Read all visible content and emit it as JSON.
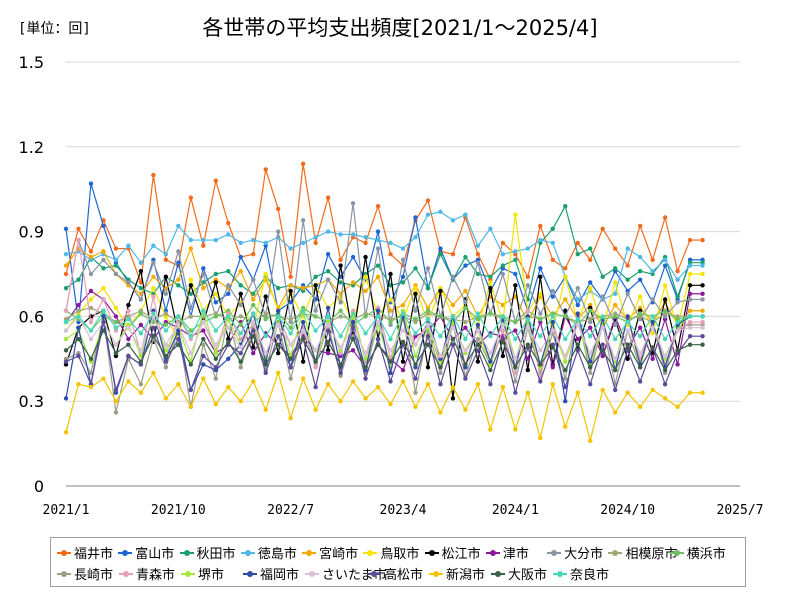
{
  "unit_label": "[単位：回]",
  "chart_data": {
    "type": "line",
    "title": "各世帯の平均支出頻度[2021/1～2025/4]",
    "xlabel": "",
    "ylabel": "",
    "ylim": [
      0,
      1.5
    ],
    "y_ticks": [
      "0",
      "0.3",
      "0.6",
      "0.9",
      "1.2",
      "1.5"
    ],
    "x_ticks": [
      "2021/1",
      "2021/10",
      "2022/7",
      "2023/4",
      "2024/1",
      "2024/10",
      "2025/7"
    ],
    "x_start": "2021/1",
    "months": 52,
    "grid": "horizontal",
    "legend_position": "bottom",
    "series": [
      {
        "name": "福井市",
        "color": "#f26b1d",
        "values": [
          0.75,
          0.91,
          0.83,
          0.94,
          0.84,
          0.84,
          0.72,
          1.1,
          0.8,
          0.78,
          1.02,
          0.85,
          1.08,
          0.93,
          0.81,
          0.82,
          1.12,
          0.98,
          0.74,
          1.14,
          0.86,
          1.02,
          0.8,
          0.88,
          0.86,
          0.99,
          0.82,
          0.78,
          0.94,
          1.01,
          0.83,
          0.82,
          0.95,
          0.82,
          0.73,
          0.86,
          0.82,
          0.74,
          0.92,
          0.8,
          0.77,
          0.86,
          0.8,
          0.91,
          0.84,
          0.78,
          0.92,
          0.8,
          0.95,
          0.76,
          0.87,
          0.87
        ]
      },
      {
        "name": "富山市",
        "color": "#1f66d4",
        "values": [
          0.91,
          0.58,
          1.07,
          0.92,
          0.79,
          0.72,
          0.66,
          0.8,
          0.62,
          0.79,
          0.6,
          0.77,
          0.65,
          0.68,
          0.81,
          0.73,
          0.85,
          0.62,
          0.65,
          0.71,
          0.66,
          0.82,
          0.74,
          0.81,
          0.73,
          0.9,
          0.65,
          0.74,
          0.95,
          0.7,
          0.84,
          0.73,
          0.78,
          0.8,
          0.69,
          0.77,
          0.75,
          0.62,
          0.77,
          0.67,
          0.74,
          0.64,
          0.72,
          0.66,
          0.76,
          0.69,
          0.73,
          0.65,
          0.78,
          0.66,
          0.8,
          0.8
        ]
      },
      {
        "name": "秋田市",
        "color": "#1aa06e",
        "values": [
          0.7,
          0.73,
          0.81,
          0.77,
          0.78,
          0.73,
          0.7,
          0.68,
          0.74,
          0.71,
          0.68,
          0.72,
          0.75,
          0.76,
          0.71,
          0.68,
          0.74,
          0.7,
          0.71,
          0.69,
          0.74,
          0.76,
          0.72,
          0.71,
          0.75,
          0.78,
          0.71,
          0.72,
          0.77,
          0.7,
          0.82,
          0.73,
          0.81,
          0.75,
          0.74,
          0.78,
          0.8,
          0.66,
          0.86,
          0.91,
          0.99,
          0.82,
          0.84,
          0.74,
          0.77,
          0.73,
          0.76,
          0.75,
          0.81,
          0.67,
          0.79,
          0.79
        ]
      },
      {
        "name": "徳島市",
        "color": "#4fb8e8",
        "values": [
          0.82,
          0.83,
          0.8,
          0.82,
          0.8,
          0.85,
          0.79,
          0.85,
          0.82,
          0.92,
          0.87,
          0.87,
          0.87,
          0.89,
          0.86,
          0.87,
          0.86,
          0.88,
          0.84,
          0.86,
          0.88,
          0.9,
          0.89,
          0.89,
          0.88,
          0.87,
          0.86,
          0.84,
          0.88,
          0.96,
          0.97,
          0.94,
          0.96,
          0.85,
          0.91,
          0.82,
          0.83,
          0.84,
          0.87,
          0.86,
          0.74,
          0.66,
          0.69,
          0.66,
          0.68,
          0.84,
          0.81,
          0.76,
          0.8,
          0.73,
          0.78,
          0.78
        ]
      },
      {
        "name": "宮崎市",
        "color": "#f5a800",
        "values": [
          0.78,
          0.84,
          0.81,
          0.83,
          0.75,
          0.71,
          0.68,
          0.74,
          0.7,
          0.73,
          0.84,
          0.7,
          0.73,
          0.7,
          0.76,
          0.66,
          0.73,
          0.63,
          0.71,
          0.7,
          0.71,
          0.73,
          0.68,
          0.72,
          0.69,
          0.74,
          0.62,
          0.64,
          0.71,
          0.63,
          0.7,
          0.64,
          0.69,
          0.6,
          0.67,
          0.64,
          0.67,
          0.58,
          0.67,
          0.6,
          0.66,
          0.59,
          0.64,
          0.56,
          0.64,
          0.59,
          0.63,
          0.58,
          0.65,
          0.57,
          0.62,
          0.62
        ]
      },
      {
        "name": "鳥取市",
        "color": "#f5e400",
        "values": [
          0.55,
          0.61,
          0.66,
          0.7,
          0.63,
          0.56,
          0.62,
          0.7,
          0.6,
          0.52,
          0.73,
          0.62,
          0.68,
          0.6,
          0.65,
          0.56,
          0.75,
          0.62,
          0.68,
          0.6,
          0.71,
          0.63,
          0.67,
          0.58,
          0.74,
          0.6,
          0.66,
          0.59,
          0.7,
          0.58,
          0.7,
          0.6,
          0.64,
          0.56,
          0.72,
          0.58,
          0.96,
          0.62,
          0.68,
          0.55,
          0.74,
          0.58,
          0.7,
          0.56,
          0.72,
          0.57,
          0.67,
          0.54,
          0.71,
          0.56,
          0.75,
          0.75
        ]
      },
      {
        "name": "松江市",
        "color": "#000000",
        "values": [
          0.43,
          0.56,
          0.6,
          0.62,
          0.46,
          0.64,
          0.76,
          0.51,
          0.74,
          0.54,
          0.71,
          0.58,
          0.72,
          0.52,
          0.68,
          0.49,
          0.67,
          0.47,
          0.69,
          0.44,
          0.71,
          0.48,
          0.78,
          0.53,
          0.81,
          0.52,
          0.75,
          0.44,
          0.68,
          0.42,
          0.69,
          0.31,
          0.66,
          0.44,
          0.7,
          0.46,
          0.71,
          0.41,
          0.74,
          0.43,
          0.62,
          0.49,
          0.63,
          0.46,
          0.59,
          0.45,
          0.62,
          0.47,
          0.66,
          0.48,
          0.71,
          0.71
        ]
      },
      {
        "name": "津市",
        "color": "#8b1a9b",
        "values": [
          0.58,
          0.64,
          0.69,
          0.66,
          0.6,
          0.52,
          0.57,
          0.52,
          0.58,
          0.56,
          0.53,
          0.55,
          0.47,
          0.5,
          0.58,
          0.47,
          0.54,
          0.5,
          0.46,
          0.53,
          0.48,
          0.47,
          0.46,
          0.48,
          0.42,
          0.5,
          0.45,
          0.41,
          0.53,
          0.55,
          0.6,
          0.52,
          0.56,
          0.5,
          0.54,
          0.53,
          0.55,
          0.45,
          0.58,
          0.42,
          0.6,
          0.52,
          0.56,
          0.46,
          0.6,
          0.49,
          0.56,
          0.45,
          0.59,
          0.43,
          0.68,
          0.68
        ]
      },
      {
        "name": "大分市",
        "color": "#8a95a5",
        "values": [
          0.62,
          0.87,
          0.75,
          0.8,
          0.75,
          0.72,
          0.66,
          0.79,
          0.68,
          0.83,
          0.63,
          0.75,
          0.6,
          0.71,
          0.64,
          0.73,
          0.6,
          0.9,
          0.58,
          0.94,
          0.62,
          0.73,
          0.65,
          1.0,
          0.6,
          0.84,
          0.57,
          0.8,
          0.62,
          0.77,
          0.6,
          0.74,
          0.65,
          0.79,
          0.61,
          0.75,
          0.58,
          0.71,
          0.61,
          0.69,
          0.6,
          0.7,
          0.58,
          0.67,
          0.57,
          0.68,
          0.59,
          0.66,
          0.6,
          0.65,
          0.66,
          0.66
        ]
      },
      {
        "name": "相模原市",
        "color": "#a0a878",
        "values": [
          0.59,
          0.62,
          0.63,
          0.61,
          0.58,
          0.6,
          0.62,
          0.59,
          0.61,
          0.58,
          0.6,
          0.6,
          0.61,
          0.59,
          0.6,
          0.58,
          0.61,
          0.6,
          0.59,
          0.61,
          0.6,
          0.58,
          0.6,
          0.59,
          0.61,
          0.6,
          0.59,
          0.6,
          0.58,
          0.61,
          0.6,
          0.59,
          0.58,
          0.6,
          0.61,
          0.59,
          0.58,
          0.6,
          0.59,
          0.61,
          0.6,
          0.58,
          0.59,
          0.6,
          0.61,
          0.59,
          0.6,
          0.58,
          0.61,
          0.6,
          0.6,
          0.6
        ]
      },
      {
        "name": "横浜市",
        "color": "#6cc060",
        "values": [
          0.62,
          0.59,
          0.55,
          0.6,
          0.58,
          0.56,
          0.61,
          0.58,
          0.57,
          0.6,
          0.55,
          0.58,
          0.6,
          0.62,
          0.57,
          0.64,
          0.59,
          0.61,
          0.56,
          0.63,
          0.6,
          0.58,
          0.62,
          0.57,
          0.6,
          0.63,
          0.58,
          0.61,
          0.59,
          0.62,
          0.6,
          0.58,
          0.63,
          0.59,
          0.61,
          0.6,
          0.58,
          0.62,
          0.59,
          0.61,
          0.6,
          0.57,
          0.62,
          0.59,
          0.6,
          0.58,
          0.61,
          0.6,
          0.62,
          0.59,
          0.6,
          0.6
        ]
      },
      {
        "name": "長崎市",
        "color": "#9d9d8a",
        "values": [
          0.45,
          0.47,
          0.4,
          0.6,
          0.26,
          0.45,
          0.36,
          0.52,
          0.42,
          0.55,
          0.28,
          0.5,
          0.38,
          0.6,
          0.42,
          0.56,
          0.41,
          0.58,
          0.38,
          0.55,
          0.43,
          0.57,
          0.39,
          0.53,
          0.4,
          0.58,
          0.42,
          0.6,
          0.33,
          0.55,
          0.4,
          0.57,
          0.39,
          0.52,
          0.43,
          0.55,
          0.37,
          0.56,
          0.4,
          0.54,
          0.38,
          0.6,
          0.4,
          0.57,
          0.36,
          0.55,
          0.42,
          0.58,
          0.4,
          0.56,
          0.57,
          0.57
        ]
      },
      {
        "name": "青森市",
        "color": "#e8a0b8",
        "values": [
          0.62,
          0.87,
          0.58,
          0.66,
          0.55,
          0.62,
          0.47,
          0.67,
          0.45,
          0.6,
          0.52,
          0.58,
          0.48,
          0.61,
          0.52,
          0.57,
          0.44,
          0.6,
          0.5,
          0.56,
          0.42,
          0.6,
          0.47,
          0.62,
          0.44,
          0.63,
          0.45,
          0.6,
          0.5,
          0.58,
          0.42,
          0.6,
          0.43,
          0.57,
          0.44,
          0.55,
          0.4,
          0.62,
          0.38,
          0.58,
          0.44,
          0.6,
          0.42,
          0.57,
          0.41,
          0.6,
          0.45,
          0.58,
          0.43,
          0.55,
          0.58,
          0.58
        ]
      },
      {
        "name": "堺市",
        "color": "#a6e83a",
        "values": [
          0.52,
          0.55,
          0.44,
          0.58,
          0.5,
          0.57,
          0.46,
          0.6,
          0.48,
          0.56,
          0.44,
          0.62,
          0.47,
          0.59,
          0.5,
          0.58,
          0.45,
          0.6,
          0.46,
          0.62,
          0.44,
          0.58,
          0.48,
          0.6,
          0.45,
          0.57,
          0.43,
          0.62,
          0.46,
          0.56,
          0.44,
          0.58,
          0.47,
          0.55,
          0.43,
          0.6,
          0.45,
          0.58,
          0.42,
          0.56,
          0.44,
          0.58,
          0.43,
          0.57,
          0.44,
          0.6,
          0.42,
          0.58,
          0.45,
          0.56,
          0.6,
          0.6
        ]
      },
      {
        "name": "福岡市",
        "color": "#2f4da8",
        "values": [
          0.31,
          0.56,
          0.36,
          0.6,
          0.33,
          0.46,
          0.43,
          0.62,
          0.45,
          0.55,
          0.34,
          0.43,
          0.41,
          0.45,
          0.5,
          0.61,
          0.44,
          0.62,
          0.42,
          0.58,
          0.44,
          0.63,
          0.42,
          0.58,
          0.41,
          0.62,
          0.4,
          0.6,
          0.42,
          0.59,
          0.45,
          0.6,
          0.42,
          0.57,
          0.44,
          0.59,
          0.42,
          0.6,
          0.43,
          0.58,
          0.3,
          0.61,
          0.44,
          0.59,
          0.41,
          0.6,
          0.43,
          0.58,
          0.42,
          0.57,
          0.6,
          0.6
        ]
      },
      {
        "name": "さいたま市",
        "color": "#d8c0d8",
        "values": [
          0.55,
          0.6,
          0.52,
          0.58,
          0.5,
          0.56,
          0.48,
          0.6,
          0.5,
          0.57,
          0.47,
          0.58,
          0.5,
          0.56,
          0.49,
          0.58,
          0.47,
          0.57,
          0.5,
          0.55,
          0.48,
          0.57,
          0.49,
          0.56,
          0.47,
          0.58,
          0.48,
          0.55,
          0.5,
          0.57,
          0.46,
          0.56,
          0.48,
          0.55,
          0.47,
          0.57,
          0.45,
          0.56,
          0.48,
          0.55,
          0.46,
          0.57,
          0.47,
          0.56,
          0.45,
          0.55,
          0.47,
          0.56,
          0.46,
          0.55,
          0.56,
          0.56
        ]
      },
      {
        "name": "高松市",
        "color": "#5a4a98",
        "values": [
          0.44,
          0.46,
          0.36,
          0.58,
          0.34,
          0.46,
          0.43,
          0.56,
          0.44,
          0.52,
          0.34,
          0.46,
          0.42,
          0.5,
          0.47,
          0.55,
          0.4,
          0.53,
          0.42,
          0.52,
          0.35,
          0.55,
          0.4,
          0.56,
          0.38,
          0.52,
          0.37,
          0.5,
          0.38,
          0.53,
          0.36,
          0.5,
          0.38,
          0.48,
          0.36,
          0.52,
          0.33,
          0.49,
          0.37,
          0.5,
          0.35,
          0.48,
          0.36,
          0.5,
          0.34,
          0.48,
          0.37,
          0.49,
          0.36,
          0.47,
          0.53,
          0.53
        ]
      },
      {
        "name": "新潟市",
        "color": "#f5c400",
        "values": [
          0.19,
          0.36,
          0.35,
          0.38,
          0.3,
          0.37,
          0.33,
          0.4,
          0.31,
          0.36,
          0.28,
          0.38,
          0.29,
          0.35,
          0.3,
          0.37,
          0.27,
          0.4,
          0.24,
          0.38,
          0.27,
          0.36,
          0.3,
          0.37,
          0.31,
          0.35,
          0.29,
          0.37,
          0.28,
          0.36,
          0.26,
          0.35,
          0.27,
          0.36,
          0.2,
          0.35,
          0.2,
          0.33,
          0.17,
          0.36,
          0.21,
          0.33,
          0.16,
          0.34,
          0.26,
          0.33,
          0.28,
          0.34,
          0.31,
          0.28,
          0.33,
          0.33
        ]
      },
      {
        "name": "大阪市",
        "color": "#3a6048",
        "values": [
          0.48,
          0.52,
          0.45,
          0.55,
          0.47,
          0.5,
          0.44,
          0.53,
          0.46,
          0.5,
          0.43,
          0.52,
          0.45,
          0.51,
          0.44,
          0.53,
          0.43,
          0.5,
          0.45,
          0.52,
          0.44,
          0.51,
          0.43,
          0.52,
          0.42,
          0.5,
          0.44,
          0.51,
          0.43,
          0.5,
          0.42,
          0.52,
          0.43,
          0.5,
          0.41,
          0.51,
          0.42,
          0.5,
          0.43,
          0.49,
          0.41,
          0.5,
          0.42,
          0.48,
          0.41,
          0.5,
          0.42,
          0.49,
          0.41,
          0.48,
          0.5,
          0.5
        ]
      },
      {
        "name": "奈良市",
        "color": "#48d8b8",
        "values": [
          0.58,
          0.6,
          0.55,
          0.62,
          0.56,
          0.59,
          0.54,
          0.61,
          0.55,
          0.6,
          0.53,
          0.62,
          0.55,
          0.6,
          0.54,
          0.61,
          0.53,
          0.6,
          0.54,
          0.62,
          0.55,
          0.6,
          0.53,
          0.61,
          0.54,
          0.6,
          0.52,
          0.61,
          0.54,
          0.59,
          0.53,
          0.6,
          0.52,
          0.61,
          0.53,
          0.6,
          0.52,
          0.59,
          0.53,
          0.6,
          0.52,
          0.59,
          0.53,
          0.6,
          0.52,
          0.58,
          0.53,
          0.6,
          0.52,
          0.58,
          0.6,
          0.6
        ]
      }
    ]
  }
}
